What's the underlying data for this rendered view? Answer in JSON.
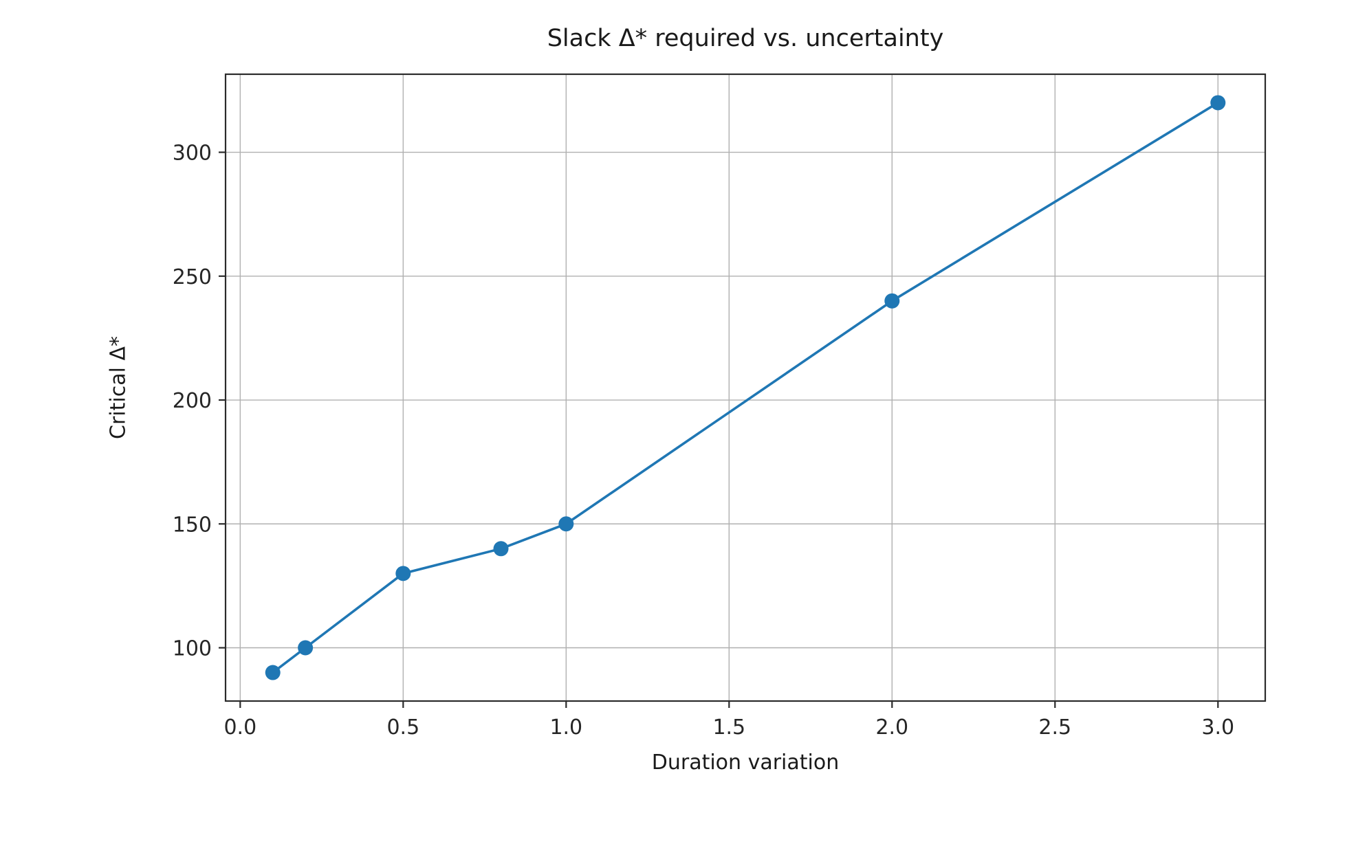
{
  "chart_data": {
    "type": "line",
    "title": "Slack Δ* required vs. uncertainty",
    "xlabel": "Duration variation",
    "ylabel": "Critical Δ*",
    "x": [
      0.1,
      0.2,
      0.5,
      0.8,
      1.0,
      2.0,
      3.0
    ],
    "y": [
      90,
      100,
      130,
      140,
      150,
      240,
      320
    ],
    "xlim": [
      -0.045,
      3.145
    ],
    "ylim": [
      78.5,
      331.5
    ],
    "xticks": [
      0.0,
      0.5,
      1.0,
      1.5,
      2.0,
      2.5,
      3.0
    ],
    "xtick_labels": [
      "0.0",
      "0.5",
      "1.0",
      "1.5",
      "2.0",
      "2.5",
      "3.0"
    ],
    "yticks": [
      100,
      150,
      200,
      250,
      300
    ],
    "ytick_labels": [
      "100",
      "150",
      "200",
      "250",
      "300"
    ],
    "grid": true,
    "legend_position": "none",
    "colors": {
      "line": "#1f77b4",
      "marker": "#1f77b4",
      "grid": "#b0b0b0",
      "frame": "#2b2b2b",
      "tick_label": "#262626",
      "background": "#ffffff"
    }
  }
}
